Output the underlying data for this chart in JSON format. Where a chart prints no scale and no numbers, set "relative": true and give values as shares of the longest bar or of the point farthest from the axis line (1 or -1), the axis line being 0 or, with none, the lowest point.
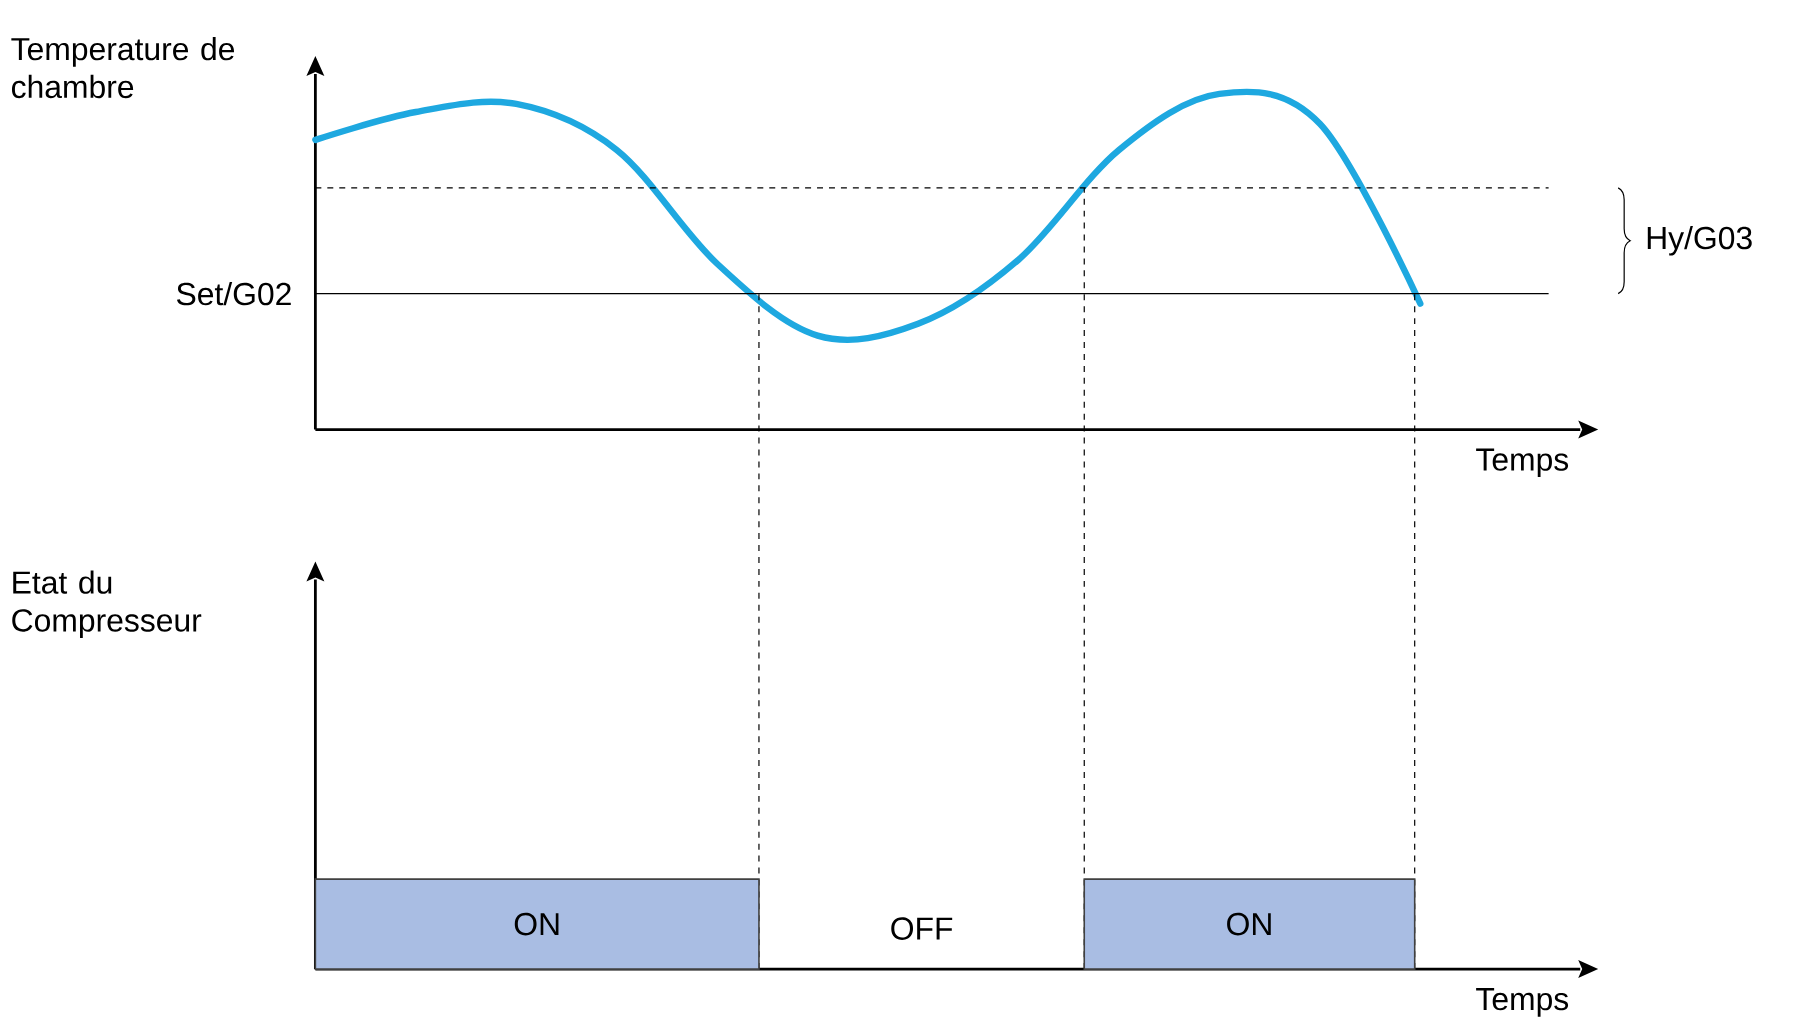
{
  "chart_data": [
    {
      "type": "line",
      "relative": true,
      "ylabel": "Temperature de chambre",
      "xlabel": "Temps",
      "categories": [
        null,
        null,
        null,
        null,
        null,
        null,
        null,
        null,
        null,
        null,
        null,
        null
      ],
      "series": [
        {
          "color": "#1ea8e0",
          "values": [
            0.863,
            0.946,
            0.97,
            0.833,
            0.494,
            0.28,
            0.315,
            0.506,
            0.833,
            1.0,
            0.911,
            0.375
          ]
        }
      ],
      "ref_lines": [
        {
          "axis": "y",
          "value": 0.405,
          "label": "Set/G02",
          "line_style": "solid"
        },
        {
          "axis": "y",
          "value": 0.72,
          "line_style": "dashed"
        }
      ],
      "annotations": [
        "Hy/G03"
      ]
    },
    {
      "type": "bar",
      "relative": true,
      "ylabel": "Etat du Compresseur",
      "xlabel": "Temps",
      "categories": [
        "ON",
        "OFF",
        "ON"
      ],
      "values": [
        1,
        0,
        1
      ],
      "color": "#a9bde3"
    }
  ]
}
